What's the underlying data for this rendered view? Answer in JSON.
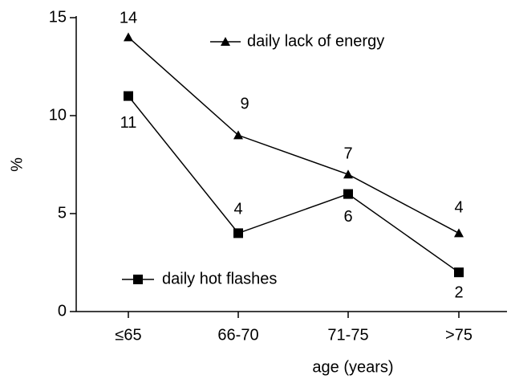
{
  "chart_data": {
    "type": "line",
    "x_label": "age (years)",
    "y_label": "%",
    "categories": [
      "≤65",
      "66-70",
      "71-75",
      ">75"
    ],
    "series": [
      {
        "name": "daily lack of energy",
        "color": "#000000",
        "marker": "triangle",
        "values": [
          14,
          9,
          7,
          4
        ]
      },
      {
        "name": "daily hot flashes",
        "color": "#000000",
        "marker": "square",
        "values": [
          11,
          4,
          6,
          2
        ]
      }
    ],
    "ylim": [
      0,
      15
    ],
    "yticks": [
      0,
      5,
      10,
      15
    ],
    "grid": false
  }
}
